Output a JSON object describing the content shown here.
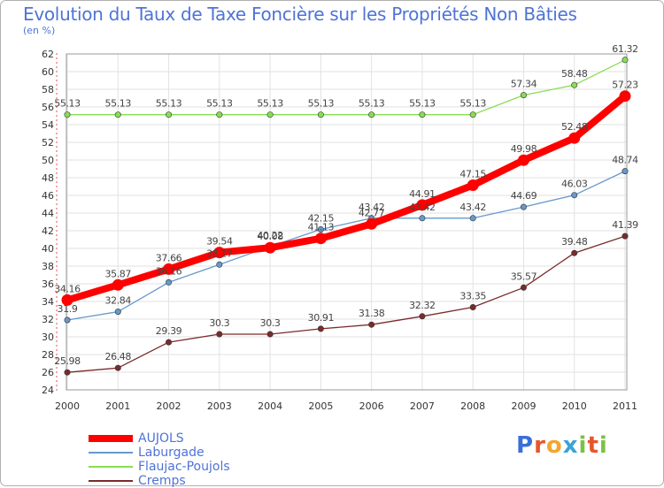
{
  "header": {
    "title": "Evolution du Taux de Taxe Foncière sur les Propriétés Non Bâties",
    "unit": "(en %)"
  },
  "brand": {
    "text": "Proxiti",
    "letter_colors": [
      "#3a6fd8",
      "#e8552a",
      "#f2a72e",
      "#3aa3d8",
      "#7cc242",
      "#e8552a",
      "#7cc242"
    ]
  },
  "chart_data": {
    "type": "line",
    "title": "Evolution du Taux de Taxe Foncière sur les Propriétés Non Bâties",
    "ylabel": "(en %)",
    "x": [
      "2000",
      "2001",
      "2002",
      "2003",
      "2004",
      "2005",
      "2006",
      "2007",
      "2008",
      "2009",
      "2010",
      "2011"
    ],
    "ylim": [
      24,
      62
    ],
    "ytick_step": 2,
    "grid": true,
    "legend_position": "bottom-left",
    "series": [
      {
        "name": "AUJOLS",
        "color": "#ff0000",
        "thick": true,
        "values": [
          34.16,
          35.87,
          37.66,
          39.54,
          40.08,
          41.13,
          42.77,
          44.91,
          47.15,
          49.98,
          52.48,
          57.23
        ],
        "labels": [
          "34.16",
          "35.87",
          "37.66",
          "39.54",
          "40.08",
          "41.13",
          "42.77",
          "44.91",
          "47.15",
          "49.98",
          "52.48",
          "57.23"
        ]
      },
      {
        "name": "Laburgade",
        "color": "#6699cc",
        "thick": false,
        "values": [
          31.9,
          32.84,
          36.16,
          38.17,
          40.22,
          42.15,
          43.42,
          43.42,
          43.42,
          44.69,
          46.03,
          48.74
        ],
        "labels": [
          "31.9",
          "32.84",
          "36.16",
          "38.17",
          "40.22",
          "42.15",
          "43.42",
          "43.42",
          "43.42",
          "44.69",
          "46.03",
          "48.74"
        ]
      },
      {
        "name": "Flaujac-Poujols",
        "color": "#88dd55",
        "thick": false,
        "values": [
          55.13,
          55.13,
          55.13,
          55.13,
          55.13,
          55.13,
          55.13,
          55.13,
          55.13,
          57.34,
          58.48,
          61.32
        ],
        "labels": [
          "55.13",
          "55.13",
          "55.13",
          "55.13",
          "55.13",
          "55.13",
          "55.13",
          "55.13",
          "55.13",
          "57.34",
          "58.48",
          "61.32"
        ]
      },
      {
        "name": "Cremps",
        "color": "#7a2b2b",
        "thick": false,
        "values": [
          25.98,
          26.48,
          29.39,
          30.3,
          30.3,
          30.91,
          31.38,
          32.32,
          33.35,
          35.57,
          39.48,
          41.39
        ],
        "labels": [
          "25.98",
          "26.48",
          "29.39",
          "30.3",
          "30.3",
          "30.91",
          "31.38",
          "32.32",
          "33.35",
          "35.57",
          "39.48",
          "41.39"
        ]
      }
    ]
  }
}
